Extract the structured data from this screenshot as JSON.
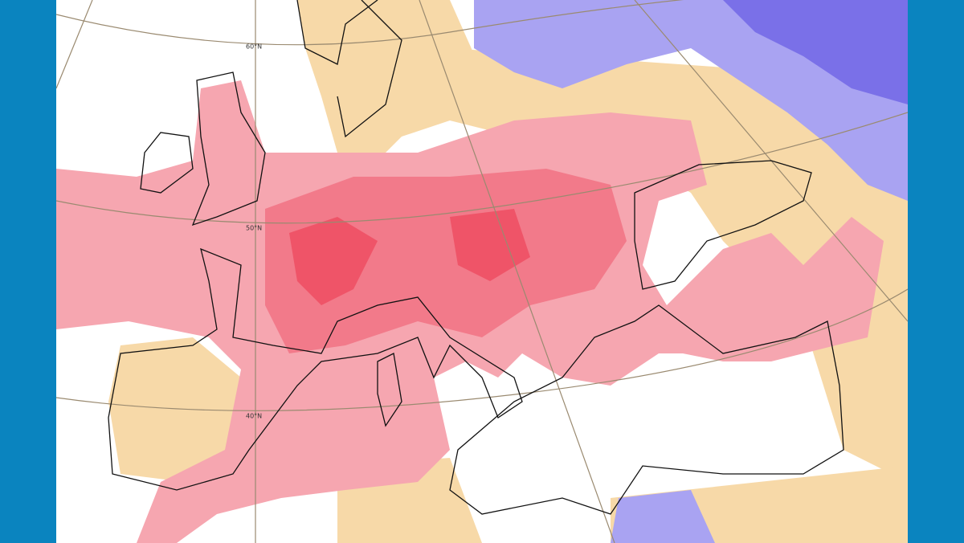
{
  "map": {
    "latitude_labels": [
      "60°N",
      "50°N",
      "40°N"
    ]
  }
}
